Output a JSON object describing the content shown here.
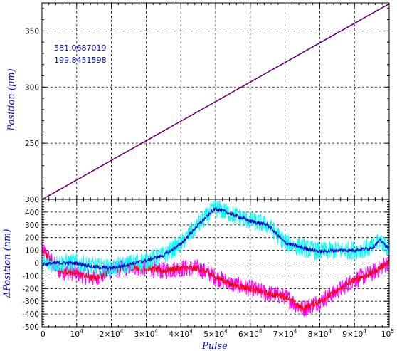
{
  "chart_data": [
    {
      "type": "line",
      "ylabel": "Position (μm)",
      "xlim": [
        0,
        100000
      ],
      "ylim": [
        200,
        375
      ],
      "yticks": [
        250,
        300,
        350
      ],
      "ytick_labels": [
        "250",
        "300",
        "350"
      ],
      "bottom_label": "300",
      "grid": true,
      "annotations": [
        "581.0687019",
        "199.8451598"
      ],
      "series": [
        {
          "color": "#ff0000",
          "x": [
            0,
            100000
          ],
          "y": [
            199.85,
            374.2
          ]
        },
        {
          "color": "#0000cc",
          "x": [
            0,
            100000
          ],
          "y": [
            199.85,
            374.2
          ]
        }
      ]
    },
    {
      "type": "line",
      "ylabel": "ΔPosition (nm)",
      "xlabel": "Pulse",
      "xlim": [
        0,
        100000
      ],
      "ylim": [
        -500,
        500
      ],
      "yticks": [
        -500,
        -400,
        -300,
        -200,
        -100,
        0,
        100,
        200,
        300,
        400
      ],
      "ytick_labels": [
        "-500",
        "-400",
        "-300",
        "-200",
        "-100",
        "0",
        "100",
        "200",
        "300",
        "400"
      ],
      "xtick_labels": [
        "0",
        "10⁴",
        "2×10⁴",
        "3×10⁴",
        "4×10⁴",
        "5×10⁴",
        "6×10⁴",
        "7×10⁴",
        "8×10⁴",
        "9×10⁴",
        "10⁵"
      ],
      "grid": true,
      "series": [
        {
          "color": "#00ffff",
          "band": 75,
          "x": [
            0,
            5000,
            10000,
            15000,
            20000,
            25000,
            30000,
            35000,
            40000,
            45000,
            50000,
            55000,
            60000,
            65000,
            70000,
            75000,
            80000,
            85000,
            90000,
            95000,
            97500,
            100000
          ],
          "y": [
            -10,
            0,
            0,
            -30,
            -40,
            -10,
            20,
            60,
            150,
            300,
            430,
            380,
            330,
            300,
            160,
            120,
            90,
            100,
            100,
            120,
            180,
            110
          ]
        },
        {
          "color": "#0000cc",
          "band": 15,
          "x": [
            0,
            5000,
            10000,
            15000,
            20000,
            25000,
            30000,
            35000,
            40000,
            45000,
            50000,
            55000,
            60000,
            65000,
            70000,
            75000,
            80000,
            85000,
            90000,
            95000,
            97500,
            100000
          ],
          "y": [
            -10,
            0,
            0,
            -30,
            -40,
            -10,
            20,
            60,
            150,
            300,
            430,
            380,
            330,
            300,
            160,
            120,
            90,
            100,
            100,
            120,
            180,
            110
          ]
        },
        {
          "color": "#ff00ff",
          "band": 70,
          "x": [
            0,
            2000,
            5000,
            10000,
            15000,
            20000,
            25000,
            30000,
            35000,
            40000,
            45000,
            50000,
            55000,
            60000,
            65000,
            70000,
            75000,
            80000,
            85000,
            90000,
            95000,
            100000
          ],
          "y": [
            100,
            40,
            -60,
            -80,
            -120,
            -60,
            -30,
            -40,
            -60,
            -40,
            -40,
            -110,
            -170,
            -200,
            -240,
            -260,
            -360,
            -300,
            -220,
            -130,
            -80,
            10
          ]
        },
        {
          "color": "#ff0000",
          "band": 25,
          "x": [
            0,
            2000,
            5000,
            10000,
            15000,
            20000,
            25000,
            30000,
            35000,
            40000,
            45000,
            50000,
            55000,
            60000,
            65000,
            70000,
            75000,
            80000,
            85000,
            90000,
            95000,
            100000
          ],
          "y": [
            100,
            40,
            -60,
            -80,
            -120,
            -60,
            -30,
            -40,
            -60,
            -40,
            -40,
            -110,
            -170,
            -200,
            -240,
            -260,
            -360,
            -300,
            -220,
            -130,
            -80,
            10
          ]
        }
      ]
    }
  ]
}
